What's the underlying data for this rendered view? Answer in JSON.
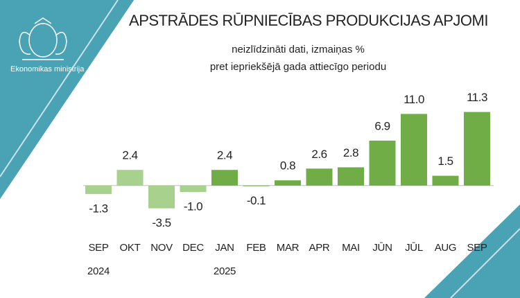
{
  "org": "Ekonomikas ministrija",
  "chart_data": {
    "type": "bar",
    "title": "APSTRĀDES RŪPNIECĪBAS PRODUKCIJAS APJOMI",
    "subtitle": [
      "neizlīdzināti dati, izmaiņas %",
      "pret iepriekšējā gada attiecīgo periodu"
    ],
    "categories": [
      "SEP",
      "OKT",
      "NOV",
      "DEC",
      "JAN",
      "FEB",
      "MAR",
      "APR",
      "MAI",
      "JŪN",
      "JŪL",
      "AUG",
      "SEP"
    ],
    "years": [
      "2024",
      null,
      null,
      null,
      "2025",
      null,
      null,
      null,
      null,
      null,
      null,
      null,
      null
    ],
    "values": [
      -1.3,
      2.4,
      -3.5,
      -1.0,
      2.4,
      -0.1,
      0.8,
      2.6,
      2.8,
      6.9,
      11.0,
      1.5,
      11.3
    ],
    "value_labels": [
      "-1.3",
      "2.4",
      "-3.5",
      "-1.0",
      "2.4",
      "-0.1",
      "0.8",
      "2.6",
      "2.8",
      "6.9",
      "11.0",
      "1.5",
      "11.3"
    ],
    "colors": [
      "#a9d18e",
      "#a9d18e",
      "#a9d18e",
      "#a9d18e",
      "#70ad47",
      "#70ad47",
      "#70ad47",
      "#70ad47",
      "#70ad47",
      "#70ad47",
      "#70ad47",
      "#70ad47",
      "#70ad47"
    ],
    "ylim": [
      -4.5,
      12
    ]
  }
}
